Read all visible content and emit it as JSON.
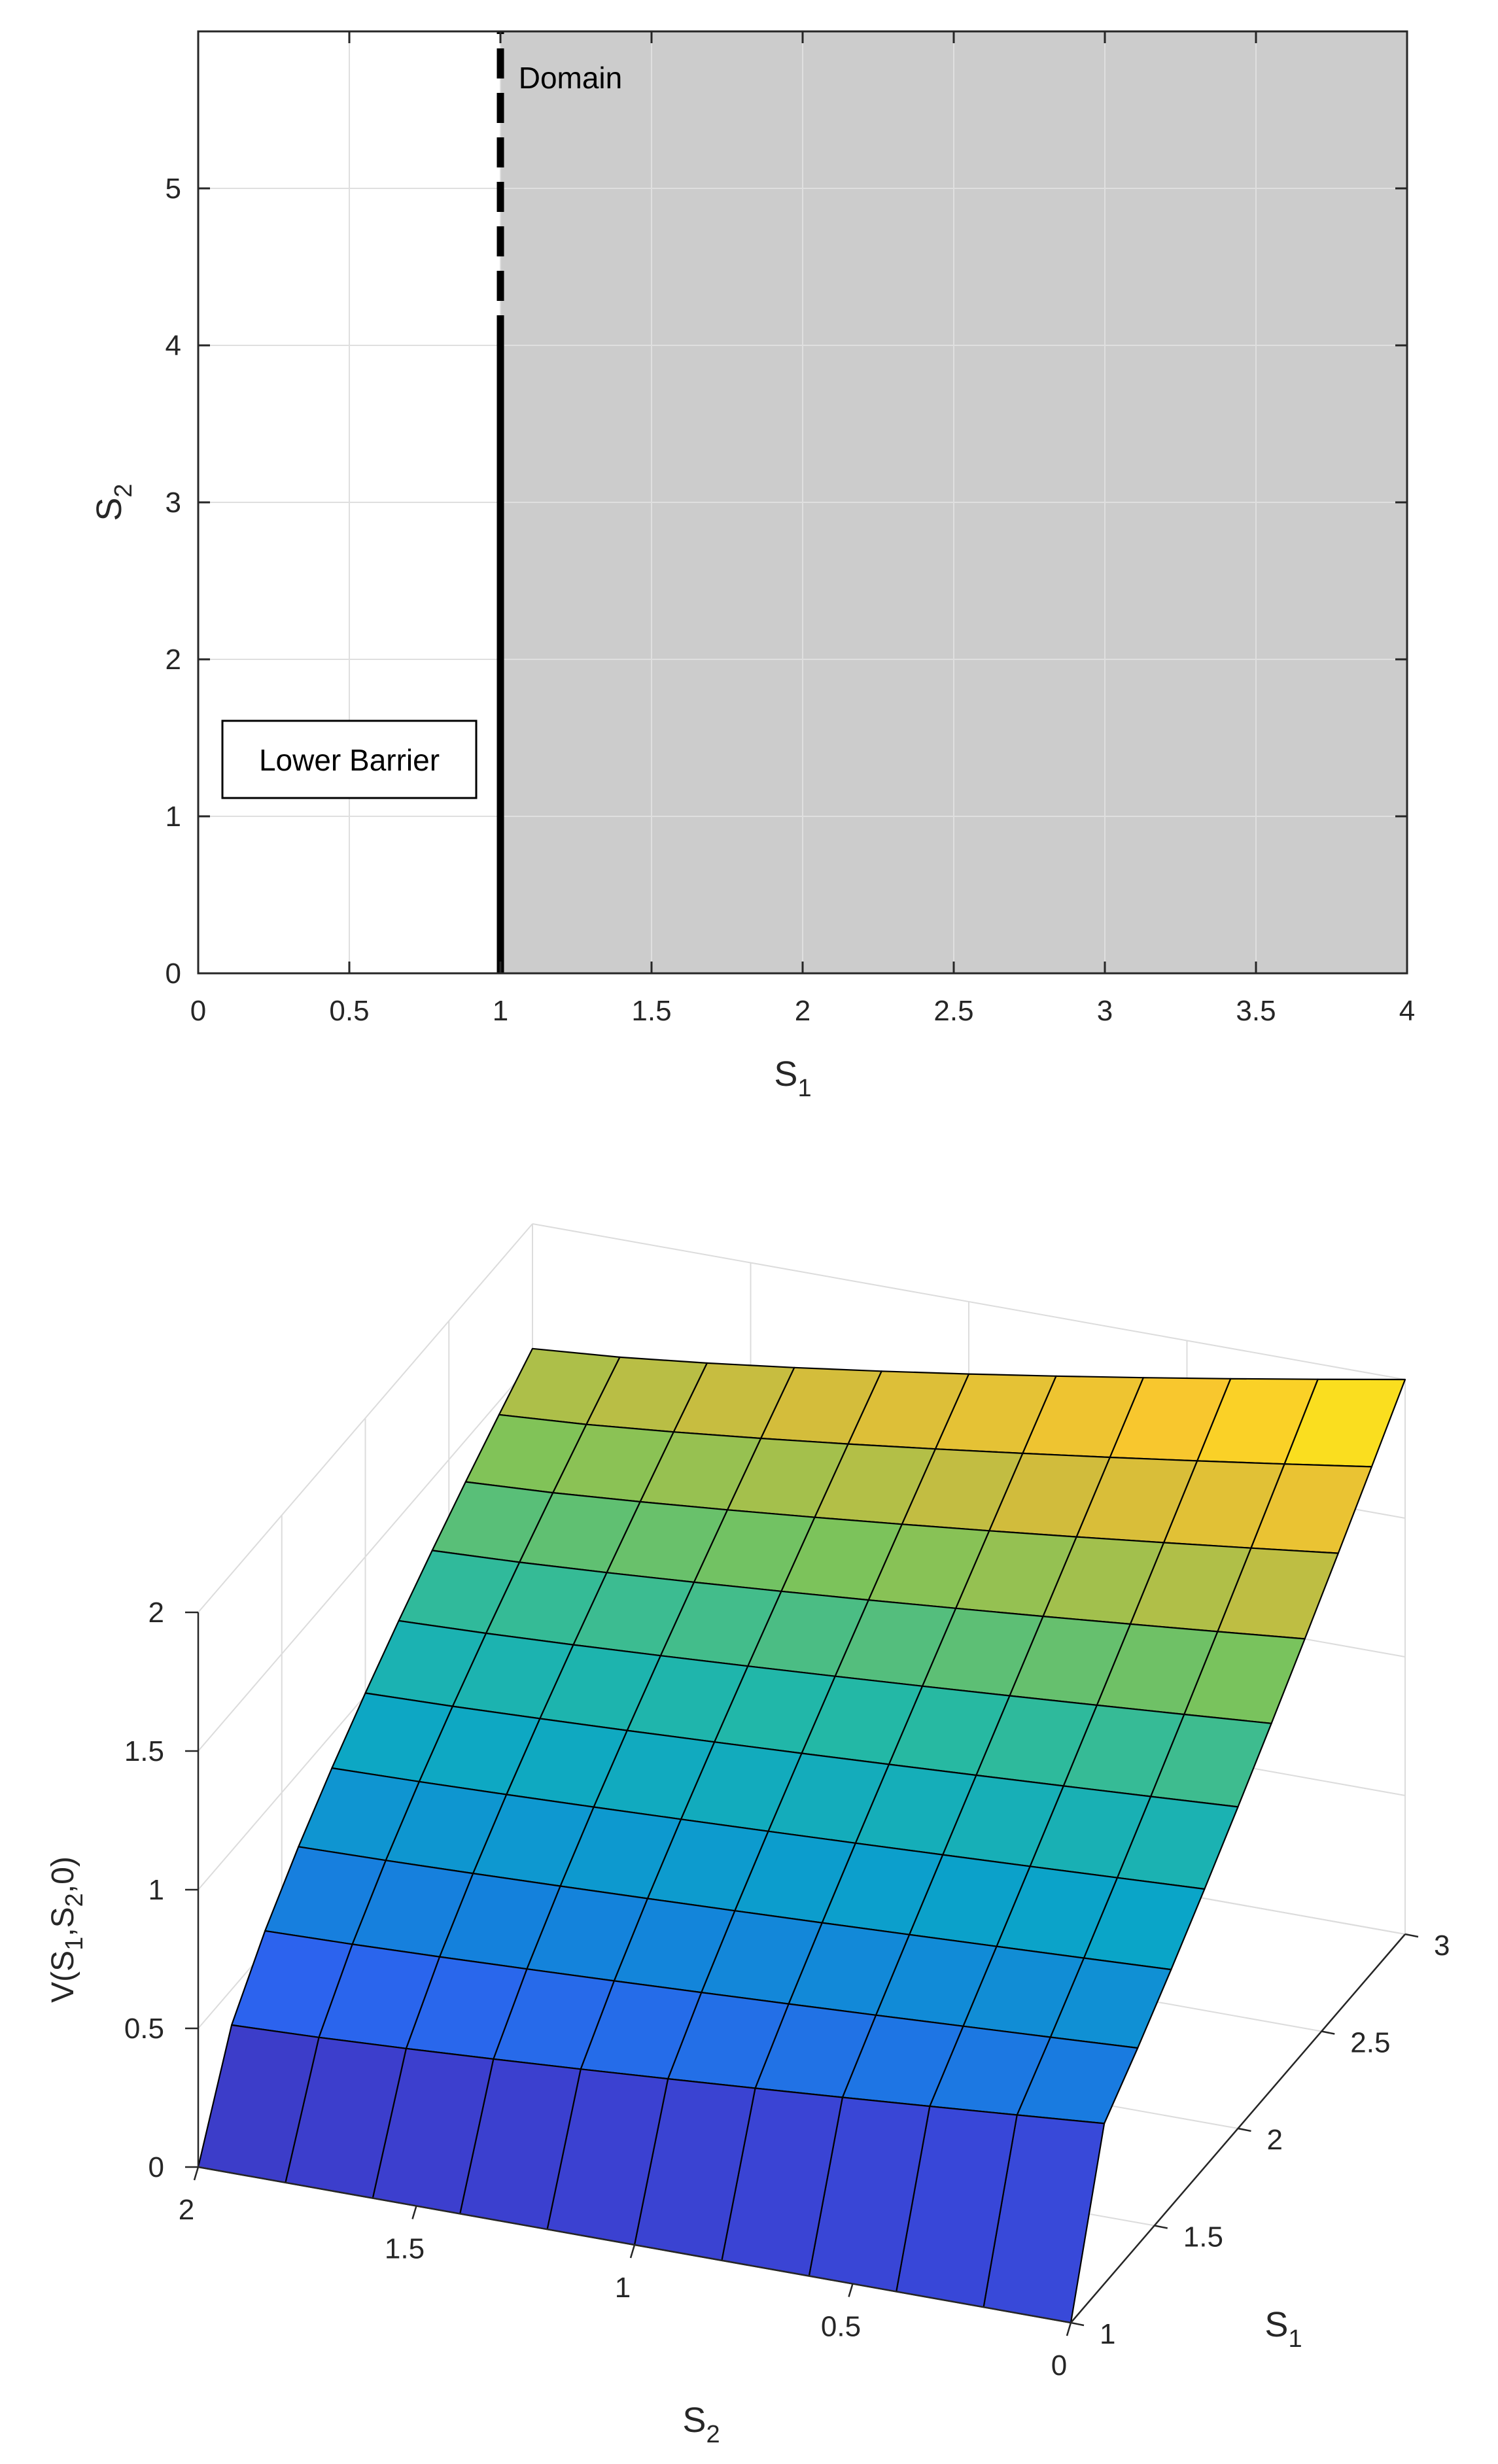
{
  "chart_data": [
    {
      "type": "area",
      "xlabel_main": "S",
      "xlabel_sub": "1",
      "ylabel_main": "S",
      "ylabel_sub": "2",
      "xlim": [
        0,
        4
      ],
      "ylim": [
        0,
        6
      ],
      "xticks": [
        0,
        0.5,
        1,
        1.5,
        2,
        2.5,
        3,
        3.5,
        4
      ],
      "xtick_labels": [
        "0",
        "0.5",
        "1",
        "1.5",
        "2",
        "2.5",
        "3",
        "3.5",
        "4"
      ],
      "yticks": [
        0,
        1,
        2,
        3,
        4,
        5
      ],
      "ytick_labels": [
        "0",
        "1",
        "2",
        "3",
        "4",
        "5"
      ],
      "grid": true,
      "domain_region": {
        "s1_from": 1,
        "s1_to": 4,
        "s2_from": 0,
        "s2_to": 6,
        "color": "#cccccc"
      },
      "barrier_line": {
        "s1": 1,
        "solid_range": [
          0,
          4
        ],
        "dashed_range": [
          4,
          6
        ],
        "color": "#000000"
      },
      "annotations": [
        {
          "text": "Domain",
          "x": 1.06,
          "y": 5.82
        },
        {
          "text": "Lower Barrier",
          "x": 0.5,
          "y": 1.35,
          "boxed": true
        }
      ]
    },
    {
      "type": "surface",
      "zlabel": "V(S",
      "zlabel_parts": [
        "V(S",
        "1",
        ",S",
        "2",
        ",0)"
      ],
      "xlabel_main": "S",
      "xlabel_sub": "2",
      "ylabel_main": "S",
      "ylabel_sub": "1",
      "s2_range": [
        0,
        2
      ],
      "s1_range": [
        1,
        3
      ],
      "zlim": [
        0,
        2
      ],
      "s2_ticks": [
        0,
        0.5,
        1,
        1.5,
        2
      ],
      "s2_tick_labels": [
        "0",
        "0.5",
        "1",
        "1.5",
        "2"
      ],
      "s1_ticks": [
        1,
        1.5,
        2,
        2.5,
        3
      ],
      "s1_tick_labels": [
        "1",
        "1.5",
        "2",
        "2.5",
        "3"
      ],
      "z_ticks": [
        0,
        0.5,
        1,
        1.5,
        2
      ],
      "z_tick_labels": [
        "0",
        "0.5",
        "1",
        "1.5",
        "2"
      ],
      "grid_n": 10,
      "value_at_corners": {
        "s2_0_s1_1": 0,
        "s2_2_s1_1": 0,
        "s2_2_s1_3": 1.55,
        "s2_0_s1_3": 2.0,
        "s2_0_s1_1_plus": 0.47
      },
      "colormap": "parula"
    }
  ]
}
